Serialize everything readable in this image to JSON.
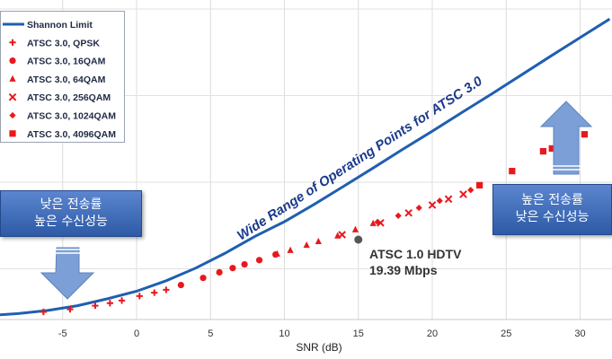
{
  "chart_data": {
    "type": "scatter",
    "xlabel": "SNR (dB)",
    "ylabel": "",
    "xlim": [
      -9,
      32
    ],
    "xticks": [
      -5,
      0,
      5,
      10,
      15,
      20,
      25,
      30
    ],
    "grid": true,
    "legend": "top-left",
    "annotation_curve": "Wide Range of Operating Points for ATSC 3.0",
    "reference_point": {
      "label": "ATSC 1.0 HDTV",
      "value": "19.39 Mbps",
      "x": 15.0,
      "y": 4.4
    },
    "series": [
      {
        "name": "Shannon Limit",
        "marker": "line",
        "color": "#1f5fb0",
        "x": [
          -10,
          -8,
          -6,
          -4,
          -2,
          0,
          2,
          4,
          6,
          8,
          10,
          12,
          14,
          16,
          18,
          20,
          22,
          24,
          26,
          28,
          30,
          32
        ],
        "y": [
          0.14,
          0.21,
          0.32,
          0.49,
          0.73,
          1.0,
          1.37,
          1.82,
          2.35,
          2.94,
          3.46,
          4.07,
          4.71,
          5.36,
          6.02,
          6.66,
          7.32,
          7.97,
          8.64,
          9.31,
          9.97,
          10.63
        ]
      },
      {
        "name": "ATSC 3.0, QPSK",
        "marker": "plus",
        "color": "#e8191c",
        "x": [
          -6.3,
          -4.5,
          -2.8,
          -1.8,
          -1.0,
          0.2,
          1.2,
          2.0
        ],
        "y": [
          0.27,
          0.36,
          0.49,
          0.58,
          0.67,
          0.83,
          0.95,
          1.05
        ]
      },
      {
        "name": "ATSC 3.0, 16QAM",
        "marker": "circle",
        "color": "#e8191c",
        "x": [
          3.0,
          4.5,
          5.6,
          6.5,
          7.3,
          8.3,
          9.4
        ],
        "y": [
          1.22,
          1.47,
          1.67,
          1.82,
          1.95,
          2.1,
          2.3
        ]
      },
      {
        "name": "ATSC 3.0, 64QAM",
        "marker": "triangle",
        "color": "#e8191c",
        "x": [
          9.5,
          10.4,
          11.5,
          12.3,
          13.6,
          14.8,
          16.0
        ],
        "y": [
          2.32,
          2.45,
          2.63,
          2.76,
          2.96,
          3.18,
          3.4
        ]
      },
      {
        "name": "ATSC 3.0, 256QAM",
        "marker": "x",
        "color": "#e8191c",
        "x": [
          13.9,
          16.5,
          18.4,
          20.0,
          21.1,
          22.1
        ],
        "y": [
          3.0,
          3.42,
          3.77,
          4.05,
          4.26,
          4.43
        ]
      },
      {
        "name": "ATSC 3.0, 1024QAM",
        "marker": "diamond",
        "color": "#e8191c",
        "x": [
          16.3,
          17.7,
          19.1,
          20.5,
          22.6
        ],
        "y": [
          3.45,
          3.67,
          3.95,
          4.2,
          4.58
        ]
      },
      {
        "name": "ATSC 3.0, 4096QAM",
        "marker": "square",
        "color": "#e8191c",
        "x": [
          23.2,
          25.4,
          27.5,
          28.1,
          30.3
        ],
        "y": [
          4.75,
          5.25,
          5.95,
          6.05,
          6.55
        ]
      }
    ]
  },
  "callouts": {
    "left": {
      "line1": "낮은 전송률",
      "line2": "높은 수신성능"
    },
    "right": {
      "line1": "높은 전송률",
      "line2": "낮은 수신성능"
    }
  },
  "colors": {
    "curve": "#1f5fb0",
    "points": "#e8191c",
    "callout": "#3a66b4",
    "arrow": "#7b9fd6"
  }
}
